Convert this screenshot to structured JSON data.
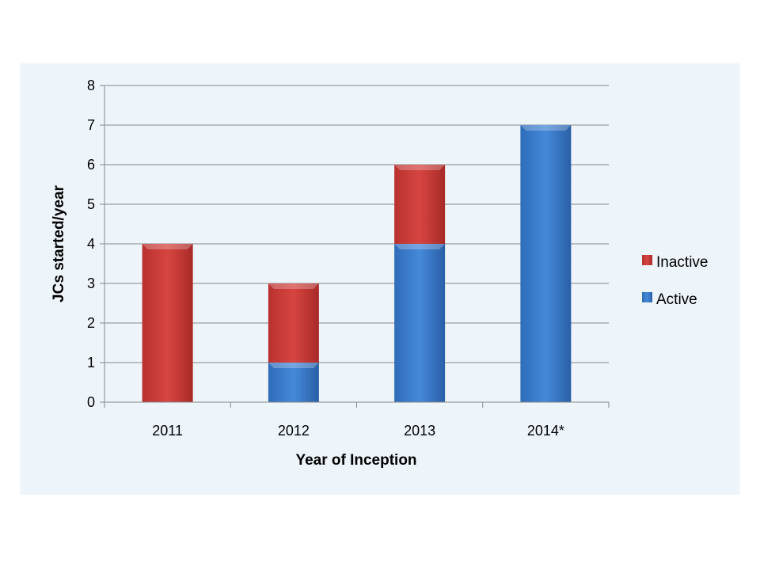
{
  "chart_data": {
    "type": "bar",
    "stacked": true,
    "title": "",
    "xlabel": "Year of Inception",
    "ylabel": "JCs started/year",
    "categories": [
      "2011",
      "2012",
      "2013",
      "2014*"
    ],
    "series": [
      {
        "name": "Active",
        "values": [
          0,
          1,
          4,
          7
        ],
        "color": "#3a7dd0"
      },
      {
        "name": "Inactive",
        "values": [
          4,
          2,
          2,
          0
        ],
        "color": "#d03c3a"
      }
    ],
    "ylim": [
      0,
      8
    ],
    "yticks": [
      "0",
      "1",
      "2",
      "3",
      "4",
      "5",
      "6",
      "7",
      "8"
    ],
    "grid": true,
    "legend": {
      "placement": "right",
      "entries": [
        "Inactive",
        "Active"
      ]
    }
  }
}
